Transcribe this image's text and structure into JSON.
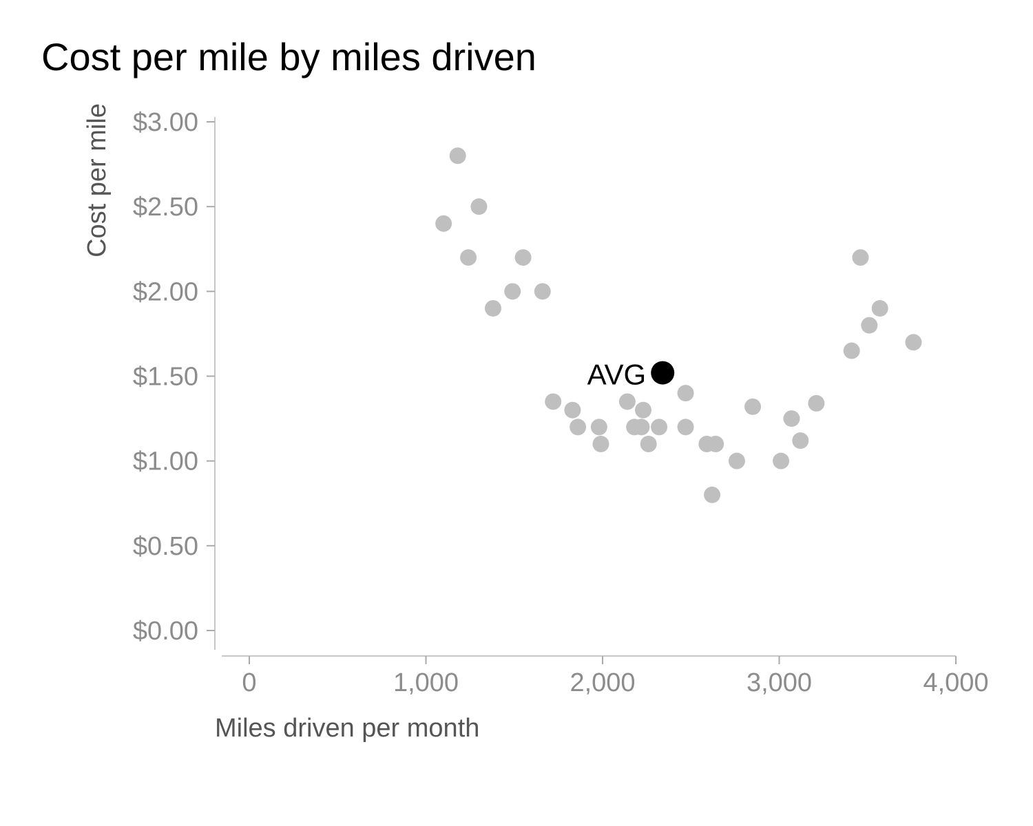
{
  "chart_data": {
    "type": "scatter",
    "title": "Cost per mile by miles driven",
    "xlabel": "Miles driven per month",
    "ylabel": "Cost per mile",
    "xlim": [
      0,
      4000
    ],
    "ylim": [
      0,
      3
    ],
    "x_ticks": [
      0,
      1000,
      2000,
      3000,
      4000
    ],
    "x_tick_labels": [
      "0",
      "1,000",
      "2,000",
      "3,000",
      "4,000"
    ],
    "y_ticks": [
      0,
      0.5,
      1,
      1.5,
      2,
      2.5,
      3
    ],
    "y_tick_labels": [
      "$0.00",
      "$0.50",
      "$1.00",
      "$1.50",
      "$2.00",
      "$2.50",
      "$3.00"
    ],
    "grid": false,
    "series": [
      {
        "color": "#bfbfbf",
        "points": [
          [
            1100,
            2.4
          ],
          [
            1180,
            2.8
          ],
          [
            1300,
            2.5
          ],
          [
            1240,
            2.2
          ],
          [
            1550,
            2.2
          ],
          [
            1380,
            1.9
          ],
          [
            1490,
            2.0
          ],
          [
            1660,
            2.0
          ],
          [
            1720,
            1.35
          ],
          [
            1830,
            1.3
          ],
          [
            1860,
            1.2
          ],
          [
            1980,
            1.2
          ],
          [
            1990,
            1.1
          ],
          [
            2140,
            1.35
          ],
          [
            2180,
            1.2
          ],
          [
            2220,
            1.2
          ],
          [
            2230,
            1.3
          ],
          [
            2260,
            1.1
          ],
          [
            2320,
            1.2
          ],
          [
            2470,
            1.4
          ],
          [
            2470,
            1.2
          ],
          [
            2590,
            1.1
          ],
          [
            2640,
            1.1
          ],
          [
            2620,
            0.8
          ],
          [
            2760,
            1.0
          ],
          [
            2850,
            1.32
          ],
          [
            3010,
            1.0
          ],
          [
            3070,
            1.25
          ],
          [
            3120,
            1.12
          ],
          [
            3210,
            1.34
          ],
          [
            3410,
            1.65
          ],
          [
            3460,
            2.2
          ],
          [
            3510,
            1.8
          ],
          [
            3570,
            1.9
          ],
          [
            3760,
            1.7
          ]
        ]
      },
      {
        "name": "AVG",
        "color": "#000000",
        "points": [
          [
            2340,
            1.52
          ]
        ]
      }
    ],
    "annotations": [
      {
        "text": "AVG",
        "x": 2340,
        "y": 1.52
      }
    ]
  }
}
